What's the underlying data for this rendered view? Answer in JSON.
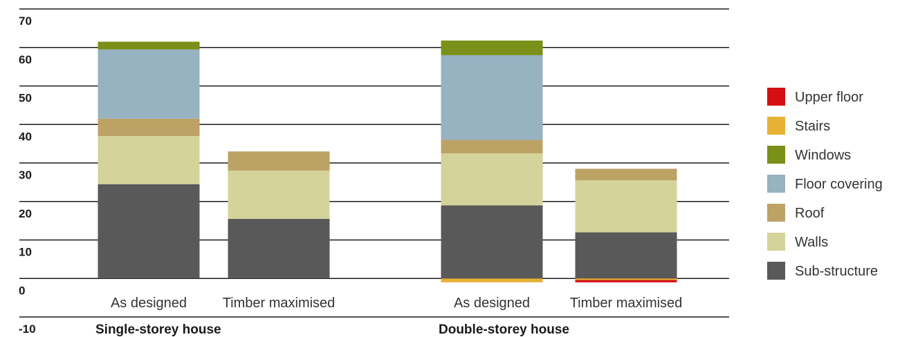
{
  "chart_data": {
    "type": "bar",
    "stacked": true,
    "yticks": [
      "70",
      "60",
      "50",
      "40",
      "30",
      "20",
      "10",
      "0",
      "-10"
    ],
    "ylim": [
      -10,
      70
    ],
    "grid": true,
    "legend_position": "right",
    "groups": [
      {
        "label": "Single-storey house",
        "categories": [
          "As designed",
          "Timber maximised"
        ]
      },
      {
        "label": "Double-storey house",
        "categories": [
          "As designed",
          "Timber maximised"
        ]
      }
    ],
    "categories": [
      "As designed",
      "Timber maximised",
      "As designed",
      "Timber maximised"
    ],
    "series": [
      {
        "name": "Sub-structure",
        "color": "#595959",
        "values": [
          24.5,
          15.5,
          19,
          12
        ]
      },
      {
        "name": "Walls",
        "color": "#d4d39a",
        "values": [
          12.5,
          12.5,
          13.5,
          13.5
        ]
      },
      {
        "name": "Roof",
        "color": "#bda266",
        "values": [
          4.5,
          5,
          3.5,
          3
        ]
      },
      {
        "name": "Floor covering",
        "color": "#97b2c1",
        "values": [
          18,
          0,
          22,
          0
        ]
      },
      {
        "name": "Windows",
        "color": "#7a9018",
        "values": [
          2,
          0,
          3.8,
          0
        ]
      },
      {
        "name": "Stairs",
        "color": "#e6b135",
        "values": [
          0,
          0,
          -1,
          -0.4
        ]
      },
      {
        "name": "Upper floor",
        "color": "#d40f12",
        "values": [
          0,
          0,
          0,
          -0.6
        ]
      }
    ],
    "legend_order": [
      "Upper floor",
      "Stairs",
      "Windows",
      "Floor covering",
      "Roof",
      "Walls",
      "Sub-structure"
    ]
  }
}
